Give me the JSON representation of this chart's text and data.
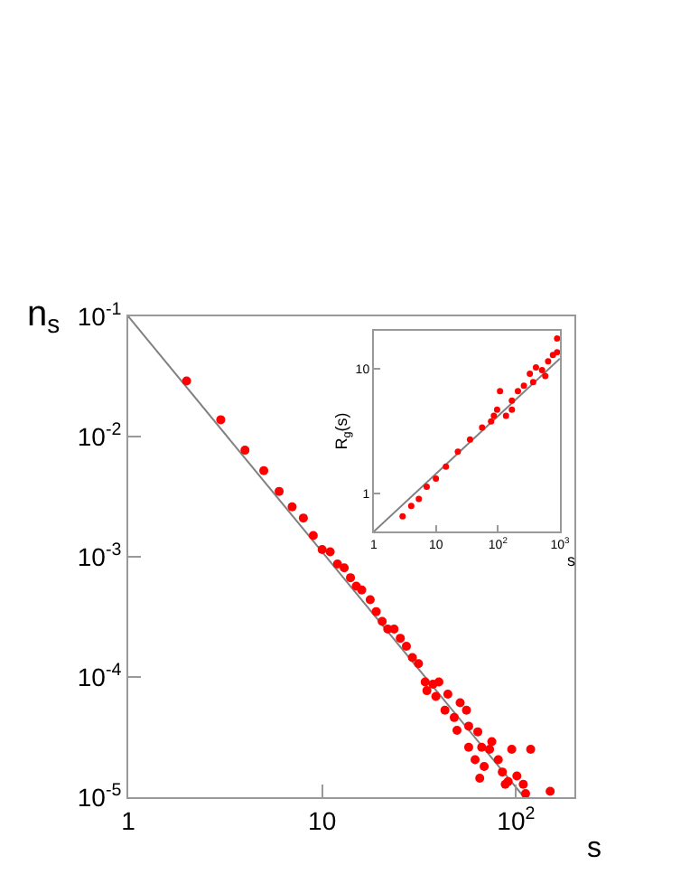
{
  "chart_data": [
    {
      "type": "scatter",
      "xlabel": "s",
      "ylabel": "n$_{s}$",
      "log": "xy",
      "grid": false,
      "xlim": [
        1,
        200
      ],
      "ylim": [
        1e-05,
        0.1
      ],
      "xticks": [
        {
          "value": 1,
          "label": "1"
        },
        {
          "value": 10,
          "label": "10"
        },
        {
          "value": 100,
          "label": "10$^{2}$"
        }
      ],
      "yticks": [
        {
          "value": 1e-05,
          "label": "10$^{-5}$"
        },
        {
          "value": 0.0001,
          "label": "10$^{-4}$"
        },
        {
          "value": 0.001,
          "label": "10$^{-3}$"
        },
        {
          "value": 0.01,
          "label": "10$^{-2}$"
        },
        {
          "value": 0.1,
          "label": "10$^{-1}$"
        }
      ],
      "series": [
        {
          "type": "line",
          "color": "#808080",
          "x": [
            1,
            110
          ],
          "values": [
            0.1,
            1e-05
          ],
          "marker": "none"
        },
        {
          "color": "#ff0000",
          "marker": "circle",
          "x": [
            2,
            3,
            4,
            5,
            6,
            7,
            8,
            9,
            10,
            11,
            12,
            13,
            14,
            15,
            16,
            17.7,
            19,
            20.4,
            21.8,
            23.5,
            25.3,
            27.2,
            29.2,
            31.4,
            34,
            37.3,
            34.7,
            40,
            38.6,
            44.5,
            43,
            51.5,
            55.5,
            48,
            49.6,
            57,
            63.5,
            57,
            66.5,
            73,
            75,
            61.5,
            68.5,
            81,
            95,
            65,
            85,
            91,
            101,
            119,
            109,
            88,
            112,
            150
          ],
          "values": [
            0.029,
            0.0138,
            0.0077,
            0.0052,
            0.0035,
            0.0026,
            0.0021,
            0.0015,
            0.00115,
            0.0011,
            0.00087,
            0.00081,
            0.00067,
            0.00057,
            0.00053,
            0.00044,
            0.00035,
            0.00029,
            0.00025,
            0.00025,
            0.00021,
            0.00018,
            0.000145,
            0.000129,
            9.1e-05,
            8.7e-05,
            7.7e-05,
            9.1e-05,
            6.9e-05,
            7.2e-05,
            5.3e-05,
            6.1e-05,
            5.3e-05,
            4.6e-05,
            3.6e-05,
            3.9e-05,
            3.5e-05,
            2.6e-05,
            2.6e-05,
            2.5e-05,
            2.9e-05,
            2.05e-05,
            1.8e-05,
            2.05e-05,
            2.5e-05,
            1.44e-05,
            1.62e-05,
            1.35e-05,
            1.5e-05,
            2.5e-05,
            1.28e-05,
            1.28e-05,
            1.07e-05,
            1.12e-05
          ]
        }
      ]
    },
    {
      "type": "scatter",
      "xlabel": "s",
      "ylabel": "R$_{g}$(s)",
      "log": "xy",
      "grid": false,
      "xlim": [
        1,
        1000
      ],
      "ylim": [
        0.5,
        20
      ],
      "xticks": [
        {
          "value": 1,
          "label": "1"
        },
        {
          "value": 10,
          "label": "10"
        },
        {
          "value": 100,
          "label": "10$^{2}$"
        },
        {
          "value": 1000,
          "label": "10$^{3}$"
        }
      ],
      "yticks": [
        1,
        10
      ],
      "series": [
        {
          "type": "line",
          "color": "#808080",
          "x": [
            1,
            1000
          ],
          "values": [
            0.5,
            12
          ],
          "marker": "none"
        },
        {
          "color": "#ff0000",
          "marker": "circle",
          "x": [
            2.9,
            4,
            5.3,
            7.1,
            10,
            14.5,
            22.6,
            35.5,
            55.6,
            77.5,
            86,
            97,
            108,
            135,
            168,
            168,
            210,
            262,
            327,
            370,
            410,
            515,
            580,
            645,
            770,
            900,
            900
          ],
          "values": [
            0.66,
            0.8,
            0.91,
            1.14,
            1.32,
            1.65,
            2.17,
            2.71,
            3.38,
            3.78,
            4.2,
            4.7,
            6.6,
            4.2,
            5.55,
            4.7,
            6.6,
            7.3,
            9.1,
            7.8,
            10.2,
            9.7,
            8.7,
            11.4,
            12.8,
            17.4,
            13.5
          ]
        }
      ]
    }
  ]
}
